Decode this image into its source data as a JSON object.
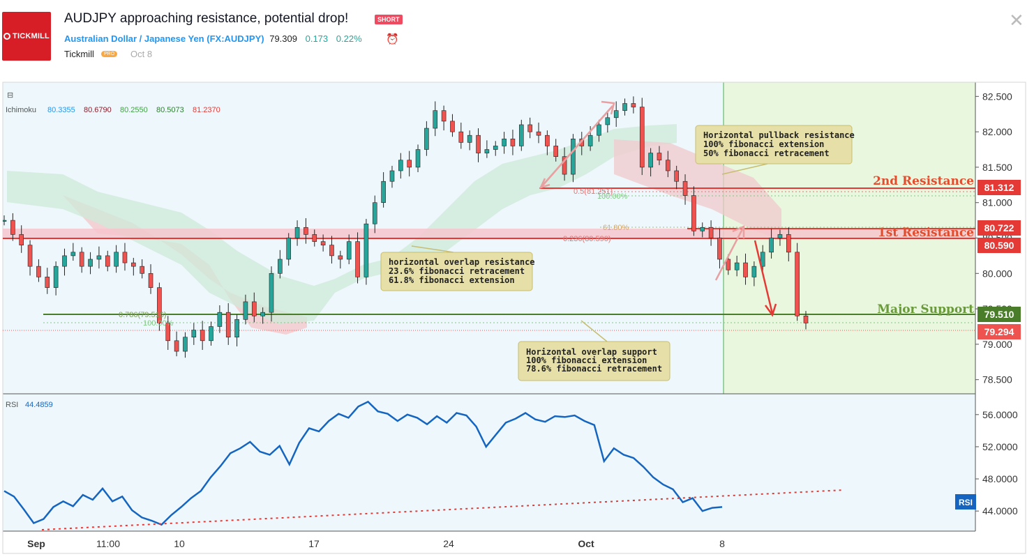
{
  "header": {
    "logo_text": "TICKMILL",
    "title": "AUDJPY approaching resistance, potential drop!",
    "badge": "SHORT",
    "symbol_name": "Australian Dollar / Japanese Yen",
    "symbol_code": "(FX:AUDJPY)",
    "last_price": "79.309",
    "change": "0.173",
    "change_pct": "0.22%",
    "author": "Tickmill",
    "author_badge": "PRO",
    "date": "Oct 8"
  },
  "chart_data": {
    "type": "candlestick",
    "title": "AUDJPY approaching resistance, potential drop!",
    "ylim": [
      78.3,
      82.7
    ],
    "y_ticks": [
      "82.500",
      "82.000",
      "81.500",
      "81.000",
      "80.500",
      "80.000",
      "79.500",
      "79.000",
      "78.500"
    ],
    "x_ticks": [
      "Sep",
      "11:00",
      "10",
      "17",
      "24",
      "Oct",
      "8"
    ],
    "ichimoku": {
      "label": "Ichimoku",
      "values": [
        "80.3355",
        "80.6790",
        "80.2550",
        "80.5073",
        "81.2370"
      ]
    },
    "levels": [
      {
        "name": "2nd Resistance",
        "value": "81.312",
        "color": "#e53935"
      },
      {
        "name": "1st Resistance",
        "value": "80.722",
        "color": "#e53935"
      },
      {
        "name": "1st Resistance lower",
        "value": "80.590",
        "color": "#e53935"
      },
      {
        "name": "Major Support",
        "value": "79.510",
        "color": "#558b2f"
      },
      {
        "name": "Current",
        "value": "79.294",
        "color": "#ef5350"
      }
    ],
    "fib_labels": [
      "0.5(81.251)",
      "100.00%",
      "61.80%",
      "0.236(80.590)",
      "0.786(79.516)",
      "100.00%"
    ],
    "annotations": [
      {
        "lines": [
          "Horizontal pullback resistance",
          "100% fibonacci extension",
          "50% fibonacci retracement"
        ]
      },
      {
        "lines": [
          "horizontal overlap resistance",
          "23.6% fibonacci retracement",
          "61.8% fibonacci extension"
        ]
      },
      {
        "lines": [
          "Horizontal overlap support",
          "100% fibonacci extension",
          "78.6% fibonacci retracement"
        ]
      }
    ],
    "price_series": [
      80.75,
      80.55,
      80.4,
      80.1,
      79.95,
      79.8,
      80.1,
      80.25,
      80.3,
      80.1,
      80.2,
      80.25,
      80.1,
      80.3,
      80.15,
      80.1,
      80.0,
      79.8,
      79.3,
      79.05,
      78.9,
      79.1,
      79.2,
      79.05,
      79.25,
      79.45,
      79.1,
      79.35,
      79.6,
      79.4,
      79.45,
      80.0,
      80.2,
      80.5,
      80.65,
      80.55,
      80.45,
      80.4,
      80.25,
      80.2,
      80.45,
      79.95,
      80.7,
      81.0,
      81.3,
      81.45,
      81.6,
      81.5,
      81.75,
      82.05,
      82.3,
      82.15,
      82.0,
      81.85,
      81.95,
      81.7,
      81.75,
      81.8,
      81.9,
      81.8,
      82.1,
      82.0,
      81.95,
      81.8,
      81.65,
      81.4,
      81.9,
      81.8,
      81.95,
      82.1,
      82.2,
      82.3,
      82.4,
      82.35,
      81.5,
      81.7,
      81.6,
      81.45,
      81.3,
      81.1,
      80.6,
      80.65,
      80.5,
      80.2,
      80.05,
      80.15,
      79.95,
      80.1,
      80.3,
      80.5,
      80.55,
      80.3,
      79.4,
      79.3
    ],
    "rsi": {
      "label": "RSI",
      "value": "44.4859",
      "y_ticks": [
        "56.0000",
        "52.0000",
        "48.0000",
        "44.0000"
      ],
      "ylim": [
        41.5,
        58.5
      ],
      "series": [
        46.5,
        45.8,
        44.2,
        42.5,
        43.0,
        44.5,
        45.2,
        44.6,
        46.0,
        45.4,
        46.8,
        45.2,
        45.8,
        44.1,
        43.2,
        42.8,
        42.3,
        43.5,
        44.5,
        45.6,
        46.5,
        48.2,
        49.6,
        51.2,
        51.8,
        52.6,
        51.4,
        51.0,
        52.1,
        49.8,
        52.5,
        54.3,
        53.9,
        55.2,
        56.1,
        55.6,
        57.0,
        57.6,
        56.4,
        56.1,
        55.2,
        56.0,
        55.6,
        54.8,
        55.8,
        55.0,
        56.2,
        55.9,
        54.5,
        52.0,
        53.5,
        55.0,
        55.5,
        56.2,
        55.4,
        55.1,
        55.8,
        55.7,
        55.9,
        55.2,
        54.7,
        50.2,
        51.8,
        51.0,
        50.6,
        49.5,
        48.2,
        47.3,
        46.7,
        45.1,
        45.6,
        44.0,
        44.4,
        44.5
      ]
    }
  }
}
